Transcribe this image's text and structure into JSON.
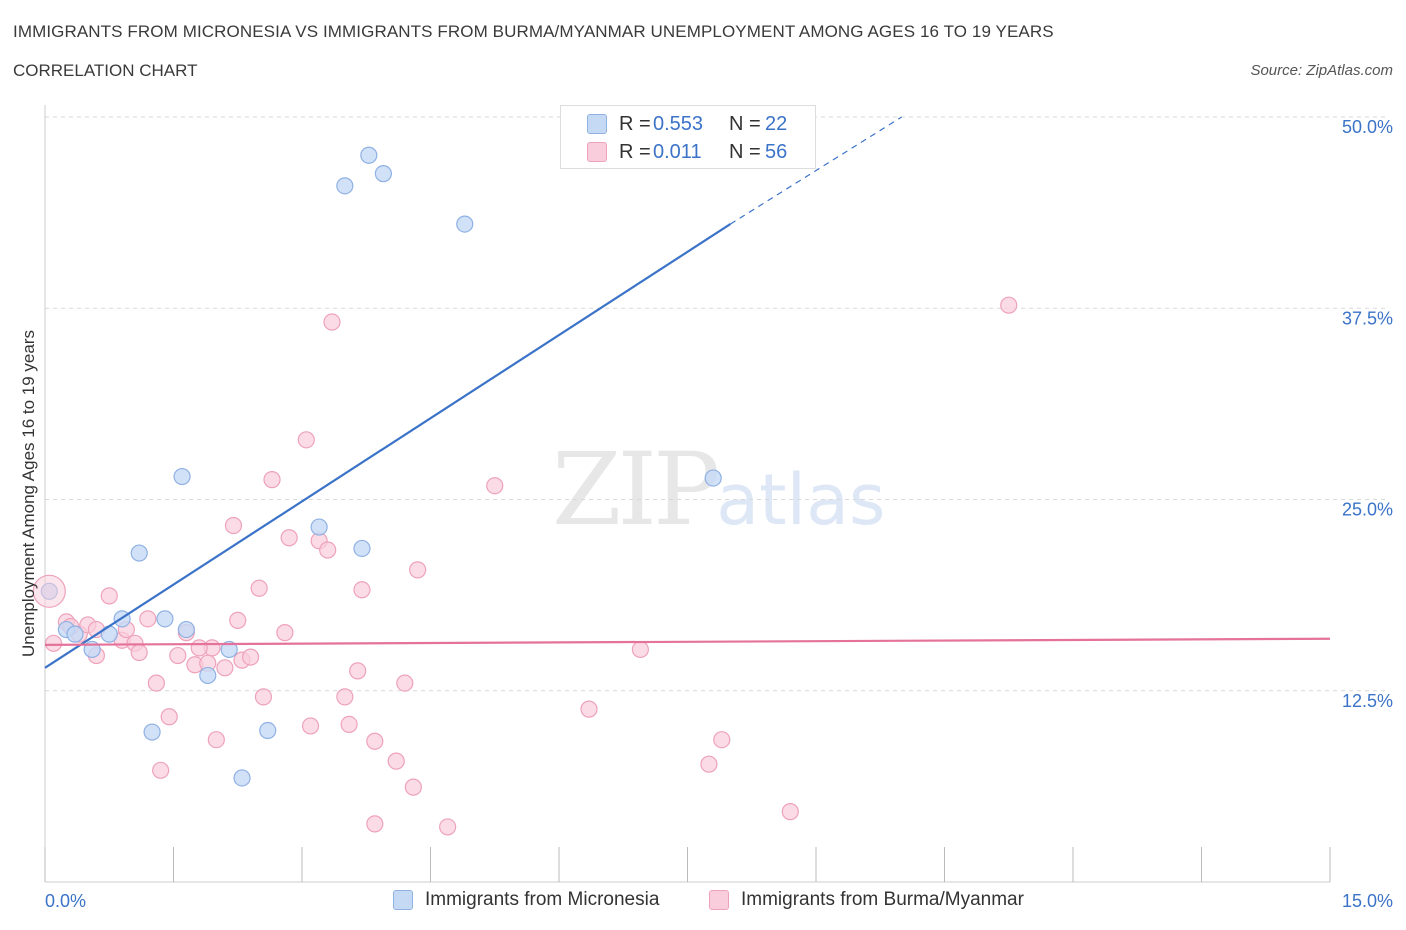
{
  "header": {
    "title": "IMMIGRANTS FROM MICRONESIA VS IMMIGRANTS FROM BURMA/MYANMAR UNEMPLOYMENT AMONG AGES 16 TO 19 YEARS",
    "subtitle": "CORRELATION CHART",
    "source": "Source: ZipAtlas.com"
  },
  "watermark": {
    "zip": "ZIP",
    "atlas": "atlas"
  },
  "legend": {
    "rows": [
      {
        "r_label": "R =",
        "r_value": "0.553",
        "n_label": "N =",
        "n_value": "22"
      },
      {
        "r_label": "R =",
        "r_value": "0.011",
        "n_label": "N =",
        "n_value": "56"
      }
    ]
  },
  "bottom_legend": {
    "series1": "Immigrants from Micronesia",
    "series2": "Immigrants from Burma/Myanmar"
  },
  "colors": {
    "blue_fill": "#c5d9f5",
    "blue_stroke": "#8fb1e3",
    "blue_line": "#3b73c8",
    "pink_fill": "#f9cddb",
    "pink_stroke": "#eea2ba",
    "pink_line": "#e4729a",
    "grid": "#d9d9d9",
    "axis_label": "#3b73c8"
  },
  "chart_data": {
    "type": "scatter",
    "title": "IMMIGRANTS FROM MICRONESIA VS IMMIGRANTS FROM BURMA/MYANMAR UNEMPLOYMENT AMONG AGES 16 TO 19 YEARS",
    "xlabel": "",
    "ylabel": "Unemployment Among Ages 16 to 19 years",
    "xlim": [
      0,
      15
    ],
    "ylim": [
      0,
      50
    ],
    "x_tick_labels": [
      "0.0%",
      "15.0%"
    ],
    "y_tick_labels": [
      "12.5%",
      "25.0%",
      "37.5%",
      "50.0%"
    ],
    "y_ticks": [
      12.5,
      25,
      37.5,
      50
    ],
    "grid": true,
    "legend_position": "top-center",
    "series": [
      {
        "name": "Immigrants from Micronesia",
        "color": "#8fb1e3",
        "trend": {
          "x": [
            0,
            8.0
          ],
          "y": [
            14.0,
            43.0
          ],
          "dashed_to": [
            10.0,
            50.0
          ]
        },
        "points": [
          [
            0.05,
            19.0
          ],
          [
            0.25,
            16.5
          ],
          [
            0.35,
            16.2
          ],
          [
            0.55,
            15.2
          ],
          [
            0.75,
            16.2
          ],
          [
            0.9,
            17.2
          ],
          [
            1.1,
            21.5
          ],
          [
            1.25,
            9.8
          ],
          [
            1.4,
            17.2
          ],
          [
            1.6,
            26.5
          ],
          [
            1.65,
            16.5
          ],
          [
            1.9,
            13.5
          ],
          [
            2.15,
            15.2
          ],
          [
            2.3,
            6.8
          ],
          [
            2.6,
            9.9
          ],
          [
            3.2,
            23.2
          ],
          [
            3.5,
            45.5
          ],
          [
            3.78,
            47.5
          ],
          [
            3.95,
            46.3
          ],
          [
            3.7,
            21.8
          ],
          [
            4.9,
            43.0
          ],
          [
            7.8,
            26.4
          ]
        ]
      },
      {
        "name": "Immigrants from Burma/Myanmar",
        "color": "#eea2ba",
        "trend": {
          "x": [
            0,
            15
          ],
          "y": [
            15.5,
            15.9
          ]
        },
        "points": [
          [
            0.1,
            15.6
          ],
          [
            0.25,
            17.0
          ],
          [
            0.4,
            16.2
          ],
          [
            0.5,
            16.8
          ],
          [
            0.6,
            16.5
          ],
          [
            0.6,
            14.8
          ],
          [
            0.75,
            18.7
          ],
          [
            0.9,
            15.8
          ],
          [
            0.95,
            16.5
          ],
          [
            1.05,
            15.6
          ],
          [
            1.1,
            15.0
          ],
          [
            1.2,
            17.2
          ],
          [
            1.3,
            13.0
          ],
          [
            1.35,
            7.3
          ],
          [
            1.45,
            10.8
          ],
          [
            1.55,
            14.8
          ],
          [
            1.65,
            16.3
          ],
          [
            1.75,
            14.2
          ],
          [
            1.9,
            14.3
          ],
          [
            1.95,
            15.3
          ],
          [
            2.0,
            9.3
          ],
          [
            2.1,
            14.0
          ],
          [
            2.2,
            23.3
          ],
          [
            2.25,
            17.1
          ],
          [
            2.3,
            14.5
          ],
          [
            2.4,
            14.7
          ],
          [
            2.5,
            19.2
          ],
          [
            2.55,
            12.1
          ],
          [
            2.65,
            26.3
          ],
          [
            2.8,
            16.3
          ],
          [
            2.85,
            22.5
          ],
          [
            3.05,
            28.9
          ],
          [
            3.1,
            10.2
          ],
          [
            3.2,
            22.3
          ],
          [
            3.3,
            21.7
          ],
          [
            3.35,
            36.6
          ],
          [
            3.5,
            12.1
          ],
          [
            3.55,
            10.3
          ],
          [
            3.65,
            13.8
          ],
          [
            3.7,
            19.1
          ],
          [
            3.85,
            9.2
          ],
          [
            3.85,
            3.8
          ],
          [
            4.1,
            7.9
          ],
          [
            4.2,
            13.0
          ],
          [
            4.3,
            6.2
          ],
          [
            4.35,
            20.4
          ],
          [
            4.7,
            3.6
          ],
          [
            5.25,
            25.9
          ],
          [
            6.35,
            11.3
          ],
          [
            6.95,
            15.2
          ],
          [
            7.75,
            7.7
          ],
          [
            7.9,
            9.3
          ],
          [
            8.7,
            4.6
          ],
          [
            11.25,
            37.7
          ],
          [
            1.8,
            15.3
          ],
          [
            0.3,
            16.7
          ]
        ]
      }
    ]
  }
}
